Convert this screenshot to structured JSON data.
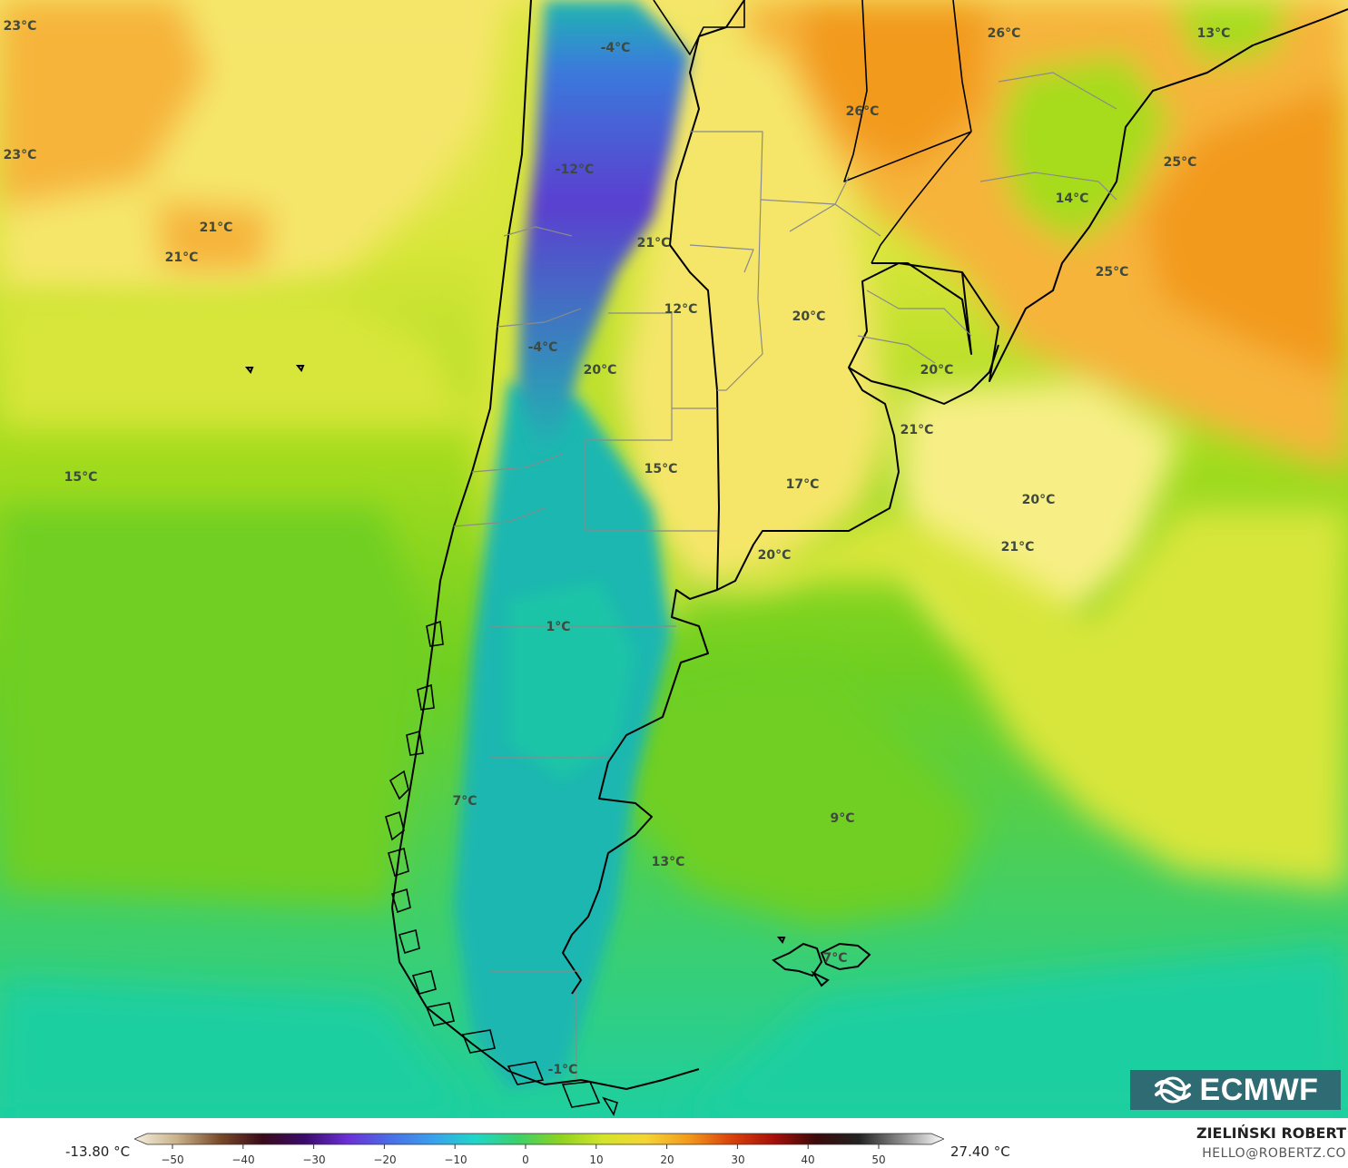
{
  "map": {
    "colors": {
      "sea_cold": "#1ecfa0",
      "sea_cool": "#3fcf6a",
      "mid_green": "#6fcf22",
      "light_green": "#a6dc1e",
      "yellow_green": "#d8e63a",
      "yellow": "#f5e66a",
      "pale_yellow": "#f7ef86",
      "orange": "#f6b43a",
      "dark_orange": "#f29a1c",
      "andes_cold": "#1fb7b0",
      "andes_blue": "#3a7bdb",
      "andes_purple": "#5b3fd0",
      "border": "#000000",
      "province_border": "#8a8a8a"
    },
    "temperature_labels": [
      "23°C",
      "23°C",
      "21°C",
      "21°C",
      "15°C",
      "-4°C",
      "-12°C",
      "21°C",
      "12°C",
      "-4°C",
      "20°C",
      "15°C",
      "1°C",
      "7°C",
      "13°C",
      "-1°C",
      "9°C",
      "7°C",
      "17°C",
      "20°C",
      "20°C",
      "20°C",
      "21°C",
      "20°C",
      "21°C",
      "26°C",
      "26°C",
      "13°C",
      "25°C",
      "14°C",
      "25°C"
    ]
  },
  "logo": {
    "text": "ECMWF",
    "icon": "ecmwf-wave-icon"
  },
  "legend": {
    "min_label": "-13.80 °C",
    "max_label": "27.40 °C",
    "ticks": [
      "−50",
      "−40",
      "−30",
      "−20",
      "−10",
      "0",
      "10",
      "20",
      "30",
      "40",
      "50"
    ],
    "stops": [
      "#f6efe0",
      "#c9b28a",
      "#7a4a2a",
      "#3a0a1a",
      "#3a0b6a",
      "#6b2fd6",
      "#4a6ee6",
      "#3aa0ee",
      "#1fd6c8",
      "#3bd06a",
      "#8ed320",
      "#d4e42a",
      "#f5d535",
      "#f39a1c",
      "#d9420a",
      "#a80f0a",
      "#3a0a0a",
      "#222222",
      "#8a8a8a",
      "#ffffff"
    ]
  },
  "credits": {
    "name": "ZIELIŃSKI ROBERT",
    "contact": "HELLO@ROBERTZ.CO"
  }
}
